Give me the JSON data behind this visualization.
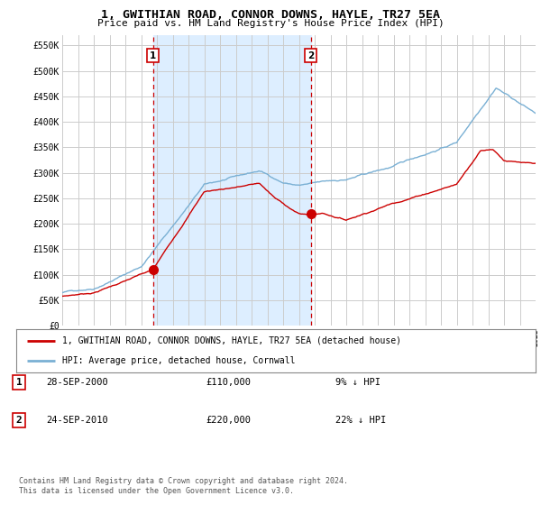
{
  "title": "1, GWITHIAN ROAD, CONNOR DOWNS, HAYLE, TR27 5EA",
  "subtitle": "Price paid vs. HM Land Registry's House Price Index (HPI)",
  "legend_label_red": "1, GWITHIAN ROAD, CONNOR DOWNS, HAYLE, TR27 5EA (detached house)",
  "legend_label_blue": "HPI: Average price, detached house, Cornwall",
  "annotation1_label": "1",
  "annotation1_date": "28-SEP-2000",
  "annotation1_price": "£110,000",
  "annotation1_hpi": "9% ↓ HPI",
  "annotation2_label": "2",
  "annotation2_date": "24-SEP-2010",
  "annotation2_price": "£220,000",
  "annotation2_hpi": "22% ↓ HPI",
  "footer": "Contains HM Land Registry data © Crown copyright and database right 2024.\nThis data is licensed under the Open Government Licence v3.0.",
  "ylim": [
    0,
    570000
  ],
  "yticks": [
    0,
    50000,
    100000,
    150000,
    200000,
    250000,
    300000,
    350000,
    400000,
    450000,
    500000,
    550000
  ],
  "ytick_labels": [
    "£0",
    "£50K",
    "£100K",
    "£150K",
    "£200K",
    "£250K",
    "£300K",
    "£350K",
    "£400K",
    "£450K",
    "£500K",
    "£550K"
  ],
  "color_red": "#cc0000",
  "color_blue": "#7ab0d4",
  "color_shade": "#ddeeff",
  "color_grid": "#cccccc",
  "color_bg": "#ffffff",
  "dashed_color": "#cc0000",
  "marker1_x": 2000.75,
  "marker1_y": 110000,
  "marker2_x": 2010.75,
  "marker2_y": 220000,
  "vline1_x": 2000.75,
  "vline2_x": 2010.75,
  "xmin": 1995,
  "xmax": 2025
}
